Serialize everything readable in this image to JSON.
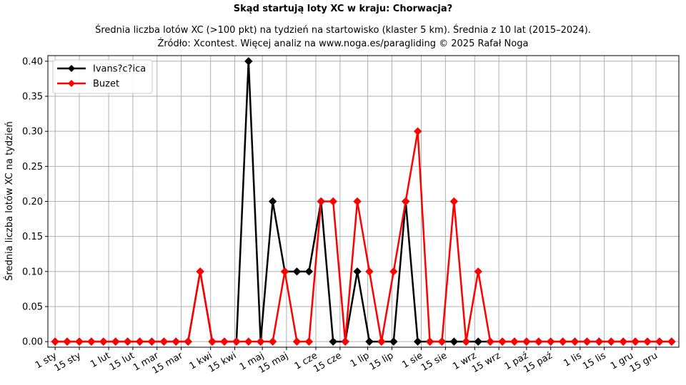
{
  "chart_data": {
    "type": "line",
    "title": "Skąd startują loty XC w kraju: Chorwacja?",
    "subtitle_lines": [
      "Średnia liczba lotów XC (>100 pkt) na tydzień na startowisko (klaster 5 km). Średnia z 10 lat (2015–2024).",
      "Źródło: Xcontest. Więcej analiz na www.noga.es/paragliding © 2025 Rafał Noga"
    ],
    "xlabel": "",
    "ylabel": "Średnia liczba lotów XC na tydzień",
    "ylim": [
      -0.008,
      0.408
    ],
    "yticks": [
      0.0,
      0.05,
      0.1,
      0.15,
      0.2,
      0.25,
      0.3,
      0.35,
      0.4
    ],
    "ytick_labels": [
      "0.00",
      "0.05",
      "0.10",
      "0.15",
      "0.20",
      "0.25",
      "0.30",
      "0.35",
      "0.40"
    ],
    "xlim": [
      -0.6,
      51.6
    ],
    "x_ticks": [
      {
        "x": 0.0,
        "label": "1 sty"
      },
      {
        "x": 2.0,
        "label": "15 sty"
      },
      {
        "x": 4.43,
        "label": "1 lut"
      },
      {
        "x": 6.43,
        "label": "15 lut"
      },
      {
        "x": 8.43,
        "label": "1 mar"
      },
      {
        "x": 10.43,
        "label": "15 mar"
      },
      {
        "x": 12.86,
        "label": "1 kwi"
      },
      {
        "x": 14.86,
        "label": "15 kwi"
      },
      {
        "x": 17.14,
        "label": "1 maj"
      },
      {
        "x": 19.14,
        "label": "15 maj"
      },
      {
        "x": 21.57,
        "label": "1 cze"
      },
      {
        "x": 23.57,
        "label": "15 cze"
      },
      {
        "x": 25.86,
        "label": "1 lip"
      },
      {
        "x": 27.86,
        "label": "15 lip"
      },
      {
        "x": 30.29,
        "label": "1 sie"
      },
      {
        "x": 32.29,
        "label": "15 sie"
      },
      {
        "x": 34.71,
        "label": "1 wrz"
      },
      {
        "x": 36.71,
        "label": "15 wrz"
      },
      {
        "x": 39.0,
        "label": "1 paź"
      },
      {
        "x": 41.0,
        "label": "15 paź"
      },
      {
        "x": 43.43,
        "label": "1 lis"
      },
      {
        "x": 45.43,
        "label": "15 lis"
      },
      {
        "x": 47.71,
        "label": "1 gru"
      },
      {
        "x": 49.71,
        "label": "15 gru"
      }
    ],
    "x": [
      0,
      1,
      2,
      3,
      4,
      5,
      6,
      7,
      8,
      9,
      10,
      11,
      12,
      13,
      14,
      15,
      16,
      17,
      18,
      19,
      20,
      21,
      22,
      23,
      24,
      25,
      26,
      27,
      28,
      29,
      30,
      31,
      32,
      33,
      34,
      35,
      36,
      37,
      38,
      39,
      40,
      41,
      42,
      43,
      44,
      45,
      46,
      47,
      48,
      49,
      50,
      51
    ],
    "series": [
      {
        "name": "Ivans?c?ica",
        "color": "#000000",
        "values": [
          0,
          0,
          0,
          0,
          0,
          0,
          0,
          0,
          0,
          0,
          0,
          0,
          0.1,
          0,
          0,
          0,
          0.4,
          0,
          0.2,
          0.1,
          0.1,
          0.1,
          0.2,
          0,
          0,
          0.1,
          0,
          0,
          0,
          0.2,
          0,
          0,
          0,
          0,
          0,
          0,
          0,
          0,
          0,
          0,
          0,
          0,
          0,
          0,
          0,
          0,
          0,
          0,
          0,
          0,
          0,
          0
        ]
      },
      {
        "name": "Buzet",
        "color": "#ff0000",
        "values": [
          0,
          0,
          0,
          0,
          0,
          0,
          0,
          0,
          0,
          0,
          0,
          0,
          0.1,
          0,
          0,
          0,
          0,
          0,
          0,
          0.1,
          0,
          0,
          0.2,
          0.2,
          0,
          0.2,
          0.1,
          0,
          0.1,
          0.2,
          0.3,
          0,
          0,
          0.2,
          0,
          0.1,
          0,
          0,
          0,
          0,
          0,
          0,
          0,
          0,
          0,
          0,
          0,
          0,
          0,
          0,
          0,
          0
        ]
      }
    ],
    "grid": true,
    "legend_position": "top-left"
  }
}
